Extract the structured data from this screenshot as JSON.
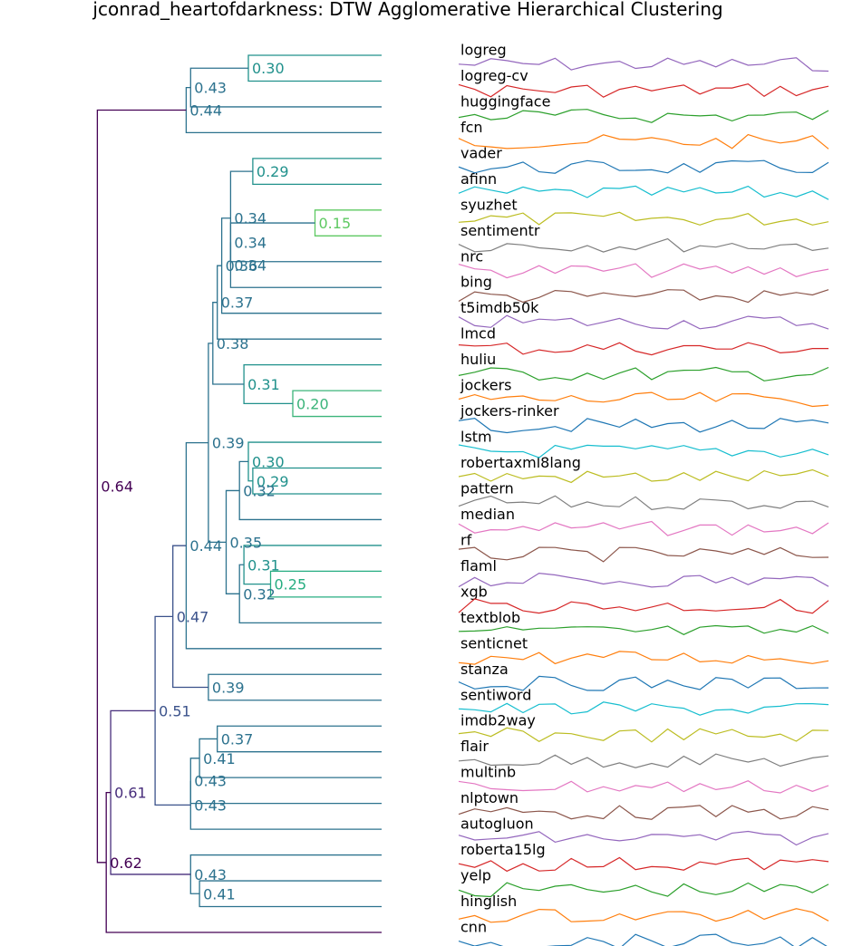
{
  "chart_data": {
    "type": "dendrogram",
    "title": "jconrad_heartofdarkness: DTW Agglomerative Hierarchical Clustering",
    "leaves": [
      "logreg",
      "logreg-cv",
      "huggingface",
      "fcn",
      "vader",
      "afinn",
      "syuzhet",
      "sentimentr",
      "nrc",
      "bing",
      "t5imdb50k",
      "lmcd",
      "huliu",
      "jockers",
      "jockers-rinker",
      "lstm",
      "robertaxml8lang",
      "pattern",
      "median",
      "rf",
      "flaml",
      "xgb",
      "textblob",
      "senticnet",
      "stanza",
      "sentiword",
      "imdb2way",
      "flair",
      "multinb",
      "nlptown",
      "autogluon",
      "roberta15lg",
      "yelp",
      "hinglish",
      "cnn"
    ],
    "merges": [
      {
        "id": "m1",
        "children": [
          "L0",
          "L1"
        ],
        "distance": 0.3,
        "label": "0.30",
        "color": "#21918c"
      },
      {
        "id": "m2",
        "children": [
          "m1",
          "L2"
        ],
        "distance": 0.43,
        "label": "0.43",
        "color": "#2c728e"
      },
      {
        "id": "m3",
        "children": [
          "m2",
          "L3"
        ],
        "distance": 0.44,
        "label": "0.44",
        "color": "#2c728e"
      },
      {
        "id": "m4",
        "children": [
          "L4",
          "L5"
        ],
        "distance": 0.29,
        "label": "0.29",
        "color": "#21918c"
      },
      {
        "id": "m5",
        "children": [
          "L6",
          "L7"
        ],
        "distance": 0.15,
        "label": "0.15",
        "color": "#5ec962"
      },
      {
        "id": "m6",
        "children": [
          "m5",
          "L8"
        ],
        "distance": 0.34,
        "label": "0.34",
        "color": "#2c728e"
      },
      {
        "id": "m7",
        "children": [
          "m6",
          "L9"
        ],
        "distance": 0.34,
        "label": "0.34",
        "color": "#2c728e"
      },
      {
        "id": "m8",
        "children": [
          "m4",
          "m7"
        ],
        "distance": 0.34,
        "label": "0.34",
        "color": "#2c728e"
      },
      {
        "id": "m9",
        "children": [
          "m8",
          "L10"
        ],
        "distance": 0.36,
        "label": "0.36",
        "color": "#2c728e"
      },
      {
        "id": "m10",
        "children": [
          "m9",
          "L11"
        ],
        "distance": 0.37,
        "label": "0.37",
        "color": "#2c728e"
      },
      {
        "id": "m11",
        "children": [
          "L13",
          "L14"
        ],
        "distance": 0.2,
        "label": "0.20",
        "color": "#3bb47a"
      },
      {
        "id": "m12",
        "children": [
          "L12",
          "m11"
        ],
        "distance": 0.31,
        "label": "0.31",
        "color": "#21918c"
      },
      {
        "id": "m13",
        "children": [
          "m10",
          "m12"
        ],
        "distance": 0.38,
        "label": "0.38",
        "color": "#2c728e"
      },
      {
        "id": "m14",
        "children": [
          "L16",
          "L17"
        ],
        "distance": 0.29,
        "label": "0.29",
        "color": "#21918c"
      },
      {
        "id": "m15",
        "children": [
          "L15",
          "m14"
        ],
        "distance": 0.3,
        "label": "0.30",
        "color": "#21918c"
      },
      {
        "id": "m16",
        "children": [
          "m15",
          "L18"
        ],
        "distance": 0.32,
        "label": "0.32",
        "color": "#2c728e"
      },
      {
        "id": "m17",
        "children": [
          "L20",
          "L21"
        ],
        "distance": 0.25,
        "label": "0.25",
        "color": "#27ad81"
      },
      {
        "id": "m18",
        "children": [
          "L19",
          "m17"
        ],
        "distance": 0.31,
        "label": "0.31",
        "color": "#21918c"
      },
      {
        "id": "m19",
        "children": [
          "m18",
          "L22"
        ],
        "distance": 0.32,
        "label": "0.32",
        "color": "#2c728e"
      },
      {
        "id": "m20",
        "children": [
          "m16",
          "m19"
        ],
        "distance": 0.35,
        "label": "0.35",
        "color": "#2c728e"
      },
      {
        "id": "m21",
        "children": [
          "m13",
          "m20"
        ],
        "distance": 0.39,
        "label": "0.39",
        "color": "#2c728e"
      },
      {
        "id": "m22",
        "children": [
          "m21",
          "L23"
        ],
        "distance": 0.44,
        "label": "0.44",
        "color": "#2c728e"
      },
      {
        "id": "m23",
        "children": [
          "L24",
          "L25"
        ],
        "distance": 0.39,
        "label": "0.39",
        "color": "#2c728e"
      },
      {
        "id": "m24",
        "children": [
          "m22",
          "m23"
        ],
        "distance": 0.47,
        "label": "0.47",
        "color": "#3b528b"
      },
      {
        "id": "m25",
        "children": [
          "L26",
          "L27"
        ],
        "distance": 0.37,
        "label": "0.37",
        "color": "#2c728e"
      },
      {
        "id": "m26",
        "children": [
          "m25",
          "L28"
        ],
        "distance": 0.41,
        "label": "0.41",
        "color": "#2c728e"
      },
      {
        "id": "m27",
        "children": [
          "m26",
          "L29"
        ],
        "distance": 0.43,
        "label": "0.43",
        "color": "#2c728e"
      },
      {
        "id": "m28",
        "children": [
          "m27",
          "L30"
        ],
        "distance": 0.43,
        "label": "0.43",
        "color": "#2c728e"
      },
      {
        "id": "m29",
        "children": [
          "m24",
          "m28"
        ],
        "distance": 0.51,
        "label": "0.51",
        "color": "#3b528b"
      },
      {
        "id": "m30",
        "children": [
          "L32",
          "L33"
        ],
        "distance": 0.41,
        "label": "0.41",
        "color": "#2c728e"
      },
      {
        "id": "m31",
        "children": [
          "L31",
          "m30"
        ],
        "distance": 0.43,
        "label": "0.43",
        "color": "#2c728e"
      },
      {
        "id": "m32",
        "children": [
          "m29",
          "m31"
        ],
        "distance": 0.61,
        "label": "0.61",
        "color": "#472d7b"
      },
      {
        "id": "m33",
        "children": [
          "m32",
          "L34"
        ],
        "distance": 0.62,
        "label": "0.62",
        "color": "#440154"
      },
      {
        "id": "m34",
        "children": [
          "m3",
          "m33"
        ],
        "distance": 0.64,
        "label": "0.64",
        "color": "#440154"
      }
    ],
    "series_colors": [
      "#9467bd",
      "#d62728",
      "#2ca02c",
      "#ff7f0e",
      "#1f77b4",
      "#17becf",
      "#bcbd22",
      "#7f7f7f",
      "#e377c2",
      "#8c564b"
    ],
    "xlim": [
      0,
      0.66
    ]
  }
}
